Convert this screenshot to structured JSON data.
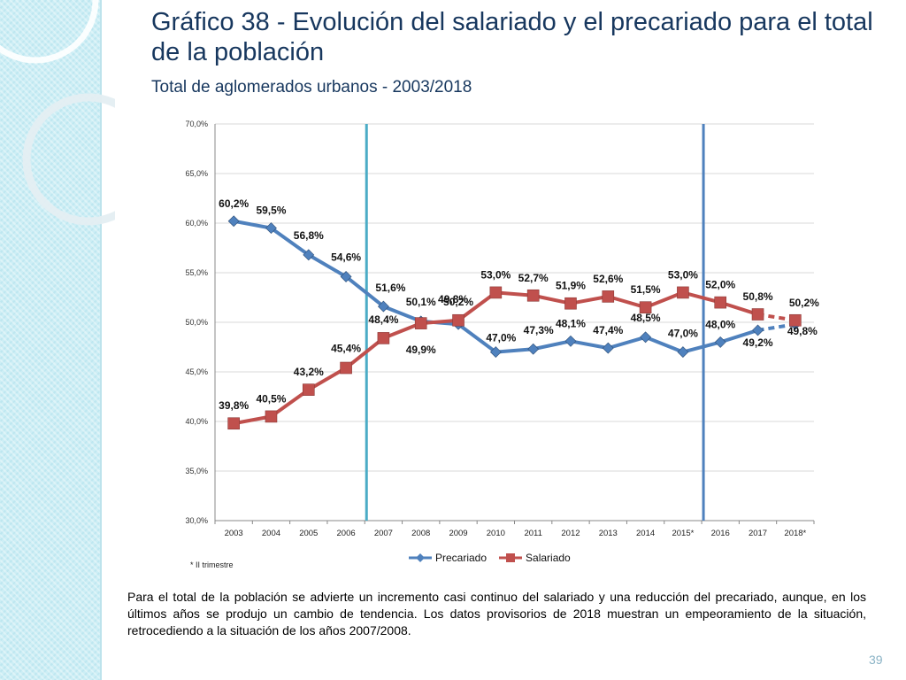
{
  "slide": {
    "title": "Gráfico 38 - Evolución del salariado y el precariado para el total de la población",
    "subtitle": "Total de aglomerados urbanos - 2003/2018",
    "note": "* II trimestre",
    "paragraph": "Para el total de la población se advierte un incremento casi continuo del salariado y una reducción del precariado, aunque, en los últimos años se produjo un cambio de tendencia.  Los datos provisorios de 2018 muestran un empeoramiento de la situación, retrocediendo a la situación de los años 2007/2008.",
    "page_number": "39"
  },
  "chart_data": {
    "type": "line",
    "title": "",
    "xlabel": "",
    "ylabel": "",
    "categories": [
      "2003",
      "2004",
      "2005",
      "2006",
      "2007",
      "2008",
      "2009",
      "2010",
      "2011",
      "2012",
      "2013",
      "2014",
      "2015*",
      "2016",
      "2017",
      "2018*"
    ],
    "y_ticks": [
      "30,0%",
      "35,0%",
      "40,0%",
      "45,0%",
      "50,0%",
      "55,0%",
      "60,0%",
      "65,0%",
      "70,0%"
    ],
    "ylim": [
      30,
      70
    ],
    "vertical_markers": [
      {
        "between": [
          "2006",
          "2007"
        ],
        "color": "#4bacc6"
      },
      {
        "between": [
          "2015*",
          "2016"
        ],
        "color": "#4f81bd"
      }
    ],
    "series": [
      {
        "name": "Precariado",
        "color": "#4f81bd",
        "marker": "diamond",
        "values": [
          60.2,
          59.5,
          56.8,
          54.6,
          51.6,
          50.1,
          49.8,
          47.0,
          47.3,
          48.1,
          47.4,
          48.5,
          47.0,
          48.0,
          49.2,
          49.8
        ],
        "labels": [
          "60,2%",
          "59,5%",
          "56,8%",
          "54,6%",
          "51,6%",
          "50,1%",
          "49,8%",
          "47,0%",
          "47,3%",
          "48,1%",
          "47,4%",
          "48,5%",
          "47,0%",
          "48,0%",
          "49,2%",
          "49,8%"
        ],
        "dashed_last_segment": true
      },
      {
        "name": "Salariado",
        "color": "#c0504d",
        "marker": "square",
        "values": [
          39.8,
          40.5,
          43.2,
          45.4,
          48.4,
          49.9,
          50.2,
          53.0,
          52.7,
          51.9,
          52.6,
          51.5,
          53.0,
          52.0,
          50.8,
          50.2
        ],
        "labels": [
          "39,8%",
          "40,5%",
          "43,2%",
          "45,4%",
          "48,4%",
          "49,9%",
          "50,2%",
          "53,0%",
          "52,7%",
          "51,9%",
          "52,6%",
          "51,5%",
          "53,0%",
          "52,0%",
          "50,8%",
          "50,2%"
        ],
        "dashed_last_segment": true
      }
    ],
    "legend": [
      "Precariado",
      "Salariado"
    ]
  }
}
